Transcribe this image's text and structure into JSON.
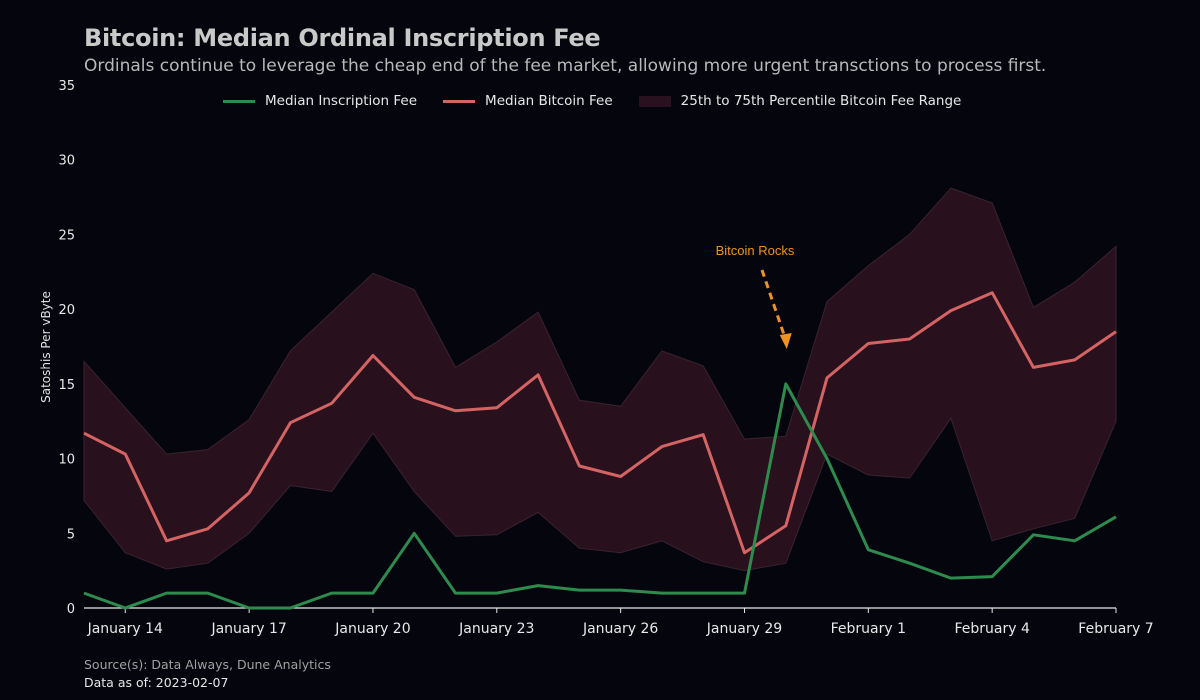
{
  "header": {
    "title": "Bitcoin: Median Ordinal Inscription Fee",
    "subtitle": "Ordinals continue to leverage the cheap end of the fee market, allowing more urgent transctions to process first."
  },
  "footer": {
    "source": "Source(s): Data Always, Dune Analytics",
    "as_of": "Data as of: 2023-02-07"
  },
  "colors": {
    "background": "#05060d",
    "inscription": "#2e8b4e",
    "bitcoin_fee": "#d46464",
    "range_fill": "#2a111f",
    "annotation": "#f0921e"
  },
  "chart_data": {
    "type": "line",
    "title": "Bitcoin: Median Ordinal Inscription Fee",
    "subtitle": "Ordinals continue to leverage the cheap end of the fee market, allowing more urgent transctions to process first.",
    "ylabel": "Satoshis Per vByte",
    "xlabel": "",
    "ylim": [
      0,
      35
    ],
    "yticks": [
      0,
      5,
      10,
      15,
      20,
      25,
      30,
      35
    ],
    "x": [
      "2023-01-13",
      "2023-01-14",
      "2023-01-15",
      "2023-01-16",
      "2023-01-17",
      "2023-01-18",
      "2023-01-19",
      "2023-01-20",
      "2023-01-21",
      "2023-01-22",
      "2023-01-23",
      "2023-01-24",
      "2023-01-25",
      "2023-01-26",
      "2023-01-27",
      "2023-01-28",
      "2023-01-29",
      "2023-01-30",
      "2023-01-31",
      "2023-02-01",
      "2023-02-02",
      "2023-02-03",
      "2023-02-04",
      "2023-02-05",
      "2023-02-06",
      "2023-02-07"
    ],
    "xticks": [
      {
        "date": "2023-01-14",
        "label": "January 14"
      },
      {
        "date": "2023-01-17",
        "label": "January 17"
      },
      {
        "date": "2023-01-20",
        "label": "January 20"
      },
      {
        "date": "2023-01-23",
        "label": "January 23"
      },
      {
        "date": "2023-01-26",
        "label": "January 26"
      },
      {
        "date": "2023-01-29",
        "label": "January 29"
      },
      {
        "date": "2023-02-01",
        "label": "February 1"
      },
      {
        "date": "2023-02-04",
        "label": "February 4"
      },
      {
        "date": "2023-02-07",
        "label": "February 7"
      }
    ],
    "series": [
      {
        "name": "Median Inscription Fee",
        "color": "#2e8b4e",
        "values": [
          1.0,
          0.0,
          1.0,
          1.0,
          0.0,
          0.0,
          1.0,
          1.0,
          5.0,
          1.0,
          1.0,
          1.5,
          1.2,
          1.2,
          1.0,
          1.0,
          1.0,
          15.0,
          10.0,
          3.9,
          3.0,
          2.0,
          2.1,
          4.9,
          4.5,
          6.1
        ]
      },
      {
        "name": "Median Bitcoin Fee",
        "color": "#d46464",
        "values": [
          11.7,
          10.3,
          4.5,
          5.3,
          7.7,
          12.4,
          13.7,
          16.9,
          14.1,
          13.2,
          13.4,
          15.6,
          9.5,
          8.8,
          10.8,
          11.6,
          3.7,
          5.5,
          15.4,
          17.7,
          18.0,
          19.9,
          21.1,
          16.1,
          16.6,
          18.5
        ]
      },
      {
        "name": "25th to 75th Percentile Bitcoin Fee Range",
        "color": "#2a111f",
        "type": "area-range",
        "lower": [
          7.2,
          3.7,
          2.6,
          3.0,
          5.0,
          8.2,
          7.8,
          11.7,
          7.8,
          4.8,
          4.9,
          6.4,
          4.0,
          3.7,
          4.5,
          3.1,
          2.5,
          3.0,
          10.3,
          8.9,
          8.7,
          12.7,
          4.5,
          5.3,
          6.0,
          12.5
        ],
        "upper": [
          16.5,
          13.4,
          10.3,
          10.6,
          12.6,
          17.2,
          19.8,
          22.4,
          21.3,
          16.1,
          17.8,
          19.8,
          13.9,
          13.5,
          17.2,
          16.2,
          11.3,
          11.5,
          20.5,
          22.9,
          25.0,
          28.1,
          27.1,
          20.1,
          21.8,
          24.2
        ]
      }
    ],
    "legend": "top-center",
    "grid": false,
    "annotations": [
      {
        "text": "Bitcoin Rocks",
        "arrow_to": {
          "x": "2023-01-30",
          "y": 17.2
        },
        "color": "#f0921e"
      }
    ]
  }
}
